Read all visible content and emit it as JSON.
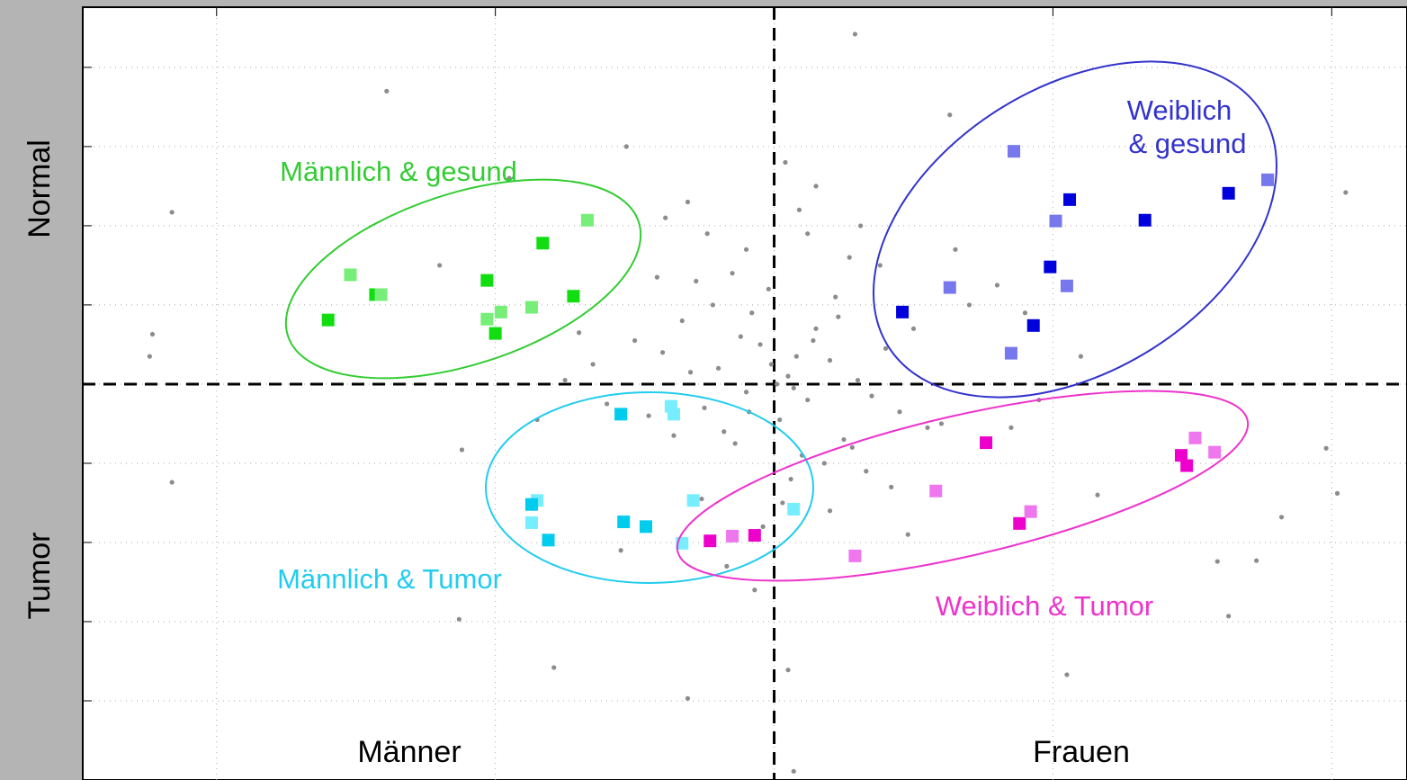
{
  "chart_data": {
    "type": "scatter",
    "xlim": [
      -2.48,
      2.27
    ],
    "ylim": [
      -5,
      4.76
    ],
    "xticks": [
      -2,
      -1,
      0,
      1,
      2
    ],
    "yticks": [
      -4,
      -3,
      -2,
      -1,
      0,
      1,
      2,
      3,
      4
    ],
    "grid": true,
    "y_region_labels": [
      "Normal",
      "Tumor"
    ],
    "x_region_labels": [
      "Männer",
      "Frauen"
    ],
    "background_points": {
      "color": "#8c8c8c",
      "x": [
        -1.39,
        -2.16,
        -2.23,
        -2.24,
        -2.16,
        -1.13,
        -0.79,
        -0.31,
        0.05,
        0.07,
        1.05,
        1.63,
        2.05,
        1.98,
        2.02,
        1.82,
        1.73,
        1.59,
        0.29,
        0.63,
        -0.53,
        -0.39,
        -1.12,
        1.16,
        -0.2,
        -0.1,
        0.05,
        0.12,
        0.2,
        -0.3,
        -0.25,
        0.3,
        0.35,
        -0.05,
        0.02,
        0.08,
        -0.12,
        -0.18,
        0.15,
        0.25,
        -0.4,
        -0.45,
        0.4,
        0.45,
        -0.08,
        0.1,
        -0.22,
        0.18,
        -0.02,
        0.06,
        -0.33,
        -0.15,
        0.22,
        0.28,
        -0.5,
        0.5,
        0.55,
        -0.6,
        -0.1,
        0.12,
        0.03,
        -0.04,
        0.09,
        -0.28,
        0.33,
        -0.36,
        0.38,
        -0.65,
        0.6,
        -0.7,
        0.7,
        0.15,
        -0.17,
        0.04,
        -0.07,
        0.2,
        -0.24,
        0.27,
        -0.42,
        0.42,
        0.01,
        -0.01,
        0.07,
        -0.09,
        0.14,
        -0.14,
        0.23,
        -0.26,
        0.31,
        -0.31,
        0.48,
        -0.55,
        0.65,
        -0.75,
        0.8,
        -0.85,
        0.9,
        0.95,
        -0.95,
        1.1,
        -1.2,
        0.85
      ],
      "values": [
        3.7,
        2.17,
        0.63,
        0.35,
        -1.24,
        -2.97,
        -3.58,
        -3.97,
        -3.61,
        -4.89,
        -3.67,
        -2.93,
        2.42,
        -0.81,
        -1.38,
        -1.68,
        -2.23,
        -2.24,
        4.42,
        3.4,
        3.0,
        2.1,
        -0.83,
        -1.4,
        0.2,
        -0.1,
        0.1,
        -0.2,
        0.3,
        0.15,
        -0.3,
        0.05,
        -0.15,
        0.5,
        -0.45,
        0.35,
        0.6,
        -0.6,
        0.7,
        -0.7,
        0.4,
        -0.4,
        0.45,
        -0.35,
        0.9,
        -0.9,
        1.0,
        -1.0,
        1.2,
        -1.2,
        0.8,
        1.4,
        1.1,
        -0.8,
        0.55,
        0.7,
        -0.55,
        -0.25,
        1.7,
        1.9,
        -1.5,
        -1.8,
        2.2,
        1.3,
        -1.1,
        -0.65,
        1.5,
        0.25,
        -0.5,
        0.65,
        1.0,
        2.5,
        -2.3,
        2.8,
        -2.6,
        -1.6,
        1.9,
        1.6,
        1.35,
        -1.3,
        0.0,
        0.25,
        -0.05,
        -0.35,
        0.55,
        -0.75,
        0.85,
        -1.45,
        2.0,
        2.3,
        -1.9,
        -2.1,
        1.7,
        0.05,
        1.25,
        -0.45,
        0.9,
        -0.2,
        2.6,
        0.35,
        1.5,
        -0.55
      ]
    },
    "series": [
      {
        "label": [
          "Männlich & gesund"
        ],
        "label_color": "#33cc33",
        "x": [
          -1.6,
          -1.52,
          -1.43,
          -1.41,
          -1.03,
          -1.03,
          -1.0,
          -0.98,
          -0.87,
          -0.83,
          -0.72,
          -0.67
        ],
        "values": [
          0.81,
          1.38,
          1.13,
          1.13,
          1.31,
          0.82,
          0.64,
          0.91,
          0.97,
          1.78,
          1.11,
          2.07
        ],
        "colors": [
          "#11dd11",
          "#77ee77",
          "#11dd11",
          "#77ee77",
          "#11dd11",
          "#77ee77",
          "#11dd11",
          "#77ee77",
          "#77ee77",
          "#11dd11",
          "#11dd11",
          "#77ee77"
        ]
      },
      {
        "label": [
          "Weiblich",
          "& gesund"
        ],
        "label_color": "#3333cc",
        "x": [
          0.86,
          1.06,
          1.01,
          1.33,
          1.63,
          1.77,
          0.99,
          1.05,
          0.63,
          0.46,
          0.93,
          0.85
        ],
        "values": [
          2.94,
          2.33,
          2.06,
          2.07,
          2.41,
          2.58,
          1.48,
          1.24,
          1.22,
          0.91,
          0.74,
          0.39
        ],
        "colors": [
          "#7777ee",
          "#0000dd",
          "#7777ee",
          "#0000dd",
          "#0000dd",
          "#7777ee",
          "#0000dd",
          "#7777ee",
          "#7777ee",
          "#0000dd",
          "#0000dd",
          "#7777ee"
        ]
      },
      {
        "label": [
          "Männlich & Tumor"
        ],
        "label_color": "#22ccee",
        "x": [
          -0.55,
          -0.37,
          -0.36,
          -0.85,
          -0.87,
          -0.87,
          -0.81,
          -0.54,
          -0.46,
          -0.29,
          -0.33,
          0.07
        ],
        "values": [
          -0.38,
          -0.28,
          -0.38,
          -1.47,
          -1.52,
          -1.75,
          -1.97,
          -1.74,
          -1.8,
          -1.47,
          -2.01,
          -1.58
        ],
        "colors": [
          "#00ccee",
          "#77eeff",
          "#77eeff",
          "#77eeff",
          "#00ccee",
          "#77eeff",
          "#00ccee",
          "#00ccee",
          "#00ccee",
          "#77eeff",
          "#77eeff",
          "#77eeff"
        ]
      },
      {
        "label": [
          "Weiblich & Tumor"
        ],
        "label_color": "#ee33cc",
        "x": [
          -0.23,
          -0.15,
          -0.07,
          0.29,
          0.58,
          0.76,
          0.88,
          0.92,
          1.46,
          1.48,
          1.51,
          1.58
        ],
        "values": [
          -1.98,
          -1.92,
          -1.91,
          -2.17,
          -1.35,
          -0.74,
          -1.76,
          -1.61,
          -0.9,
          -1.03,
          -0.68,
          -0.86
        ],
        "colors": [
          "#ee00cc",
          "#ee77ee",
          "#ee00cc",
          "#ee77ee",
          "#ee77ee",
          "#ee00cc",
          "#ee00cc",
          "#ee77ee",
          "#ee00cc",
          "#ee00cc",
          "#ee77ee",
          "#ee77ee"
        ]
      }
    ]
  }
}
